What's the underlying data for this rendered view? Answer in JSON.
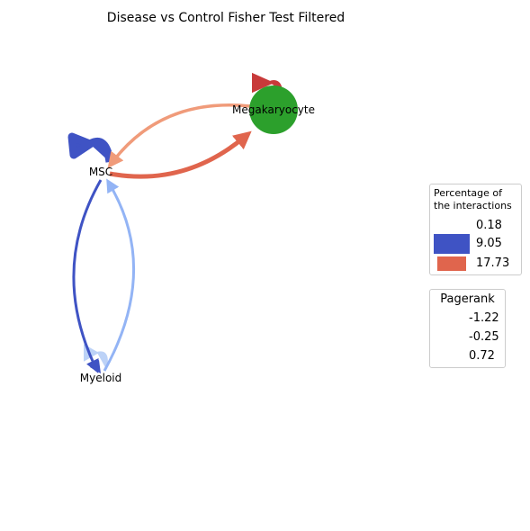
{
  "title": "Disease vs Control Fisher Test Filtered",
  "nodes": [
    {
      "label": "Megakaryocyte"
    },
    {
      "label": "MSC"
    },
    {
      "label": "Myeloid"
    }
  ],
  "legends": [
    {
      "title": "Percentage of\nthe interactions",
      "entries": [
        0.18,
        9.05,
        17.73
      ]
    },
    {
      "title": "Pagerank",
      "entries": [
        -1.22,
        -0.25,
        0.72
      ]
    }
  ]
}
